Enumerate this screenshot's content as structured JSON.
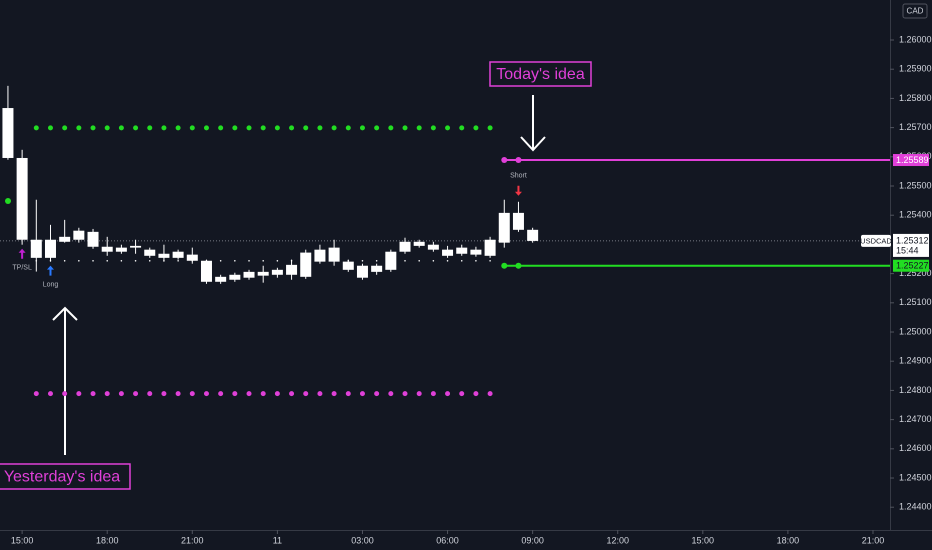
{
  "chart_data": {
    "type": "candlestick",
    "symbol": "USDCAD",
    "currency": "CAD",
    "up_color": "#ffffff",
    "down_color": "#ffffff",
    "candles": {
      "open": [
        1.25767,
        1.25596,
        1.25316,
        1.25254,
        1.25309,
        1.25316,
        1.25343,
        1.25292,
        1.25275,
        1.25289,
        1.25282,
        1.25268,
        1.25254,
        1.25265,
        1.25244,
        1.25172,
        1.25179,
        1.25186,
        1.25193,
        1.25196,
        1.25196,
        1.25189,
        1.25241,
        1.25289,
        1.25241,
        1.25227,
        1.25206,
        1.25213,
        1.25275,
        1.25295,
        1.25299,
        1.25282,
        1.25268,
        1.25282,
        1.25261,
        1.25306,
        1.25408,
        1.2535
      ],
      "high": [
        1.25843,
        1.25624,
        1.25453,
        1.25367,
        1.25384,
        1.25357,
        1.25353,
        1.25326,
        1.25299,
        1.25316,
        1.25289,
        1.25299,
        1.25282,
        1.25289,
        1.25248,
        1.25196,
        1.25203,
        1.25213,
        1.25227,
        1.2522,
        1.25248,
        1.25282,
        1.25299,
        1.25316,
        1.25248,
        1.25234,
        1.25234,
        1.25282,
        1.25323,
        1.25316,
        1.25309,
        1.25295,
        1.25299,
        1.25292,
        1.25326,
        1.25453,
        1.25446,
        1.25357
      ],
      "low": [
        1.2559,
        1.25299,
        1.25207,
        1.25241,
        1.25306,
        1.25306,
        1.25285,
        1.25261,
        1.25268,
        1.25268,
        1.25254,
        1.25241,
        1.25248,
        1.25234,
        1.25165,
        1.25165,
        1.25172,
        1.25179,
        1.25169,
        1.25186,
        1.25179,
        1.25182,
        1.25234,
        1.25227,
        1.25206,
        1.25179,
        1.25196,
        1.25206,
        1.25268,
        1.25289,
        1.25275,
        1.25254,
        1.25261,
        1.25258,
        1.25254,
        1.25289,
        1.25343,
        1.25306
      ],
      "close": [
        1.25596,
        1.25316,
        1.25254,
        1.25316,
        1.25326,
        1.25347,
        1.25292,
        1.25275,
        1.25289,
        1.25295,
        1.25261,
        1.25254,
        1.25275,
        1.25244,
        1.25172,
        1.25189,
        1.25196,
        1.25206,
        1.25206,
        1.25213,
        1.2523,
        1.25272,
        1.25282,
        1.25241,
        1.25213,
        1.25186,
        1.25227,
        1.25275,
        1.25309,
        1.25309,
        1.25282,
        1.25261,
        1.25289,
        1.25265,
        1.25316,
        1.25408,
        1.2535,
        1.25312
      ]
    },
    "xlim": [
      -0.56,
      62.2
    ],
    "xticks": [
      {
        "value": 1,
        "label": "15:00"
      },
      {
        "value": 7,
        "label": "18:00"
      },
      {
        "value": 13,
        "label": "21:00"
      },
      {
        "value": 19,
        "label": "11"
      },
      {
        "value": 25,
        "label": "03:00"
      },
      {
        "value": 31,
        "label": "06:00"
      },
      {
        "value": 37,
        "label": "09:00"
      },
      {
        "value": 43,
        "label": "12:00"
      },
      {
        "value": 49,
        "label": "15:00"
      },
      {
        "value": 55,
        "label": "18:00"
      },
      {
        "value": 61,
        "label": "21:00"
      }
    ],
    "ylim": [
      1.24322,
      1.26137
    ],
    "yticks": [
      {
        "value": 1.26,
        "label": "1.26000"
      },
      {
        "value": 1.259,
        "label": "1.25900"
      },
      {
        "value": 1.258,
        "label": "1.25800"
      },
      {
        "value": 1.257,
        "label": "1.25700"
      },
      {
        "value": 1.256,
        "label": "1.25600"
      },
      {
        "value": 1.255,
        "label": "1.25500"
      },
      {
        "value": 1.254,
        "label": "1.25400"
      },
      {
        "value": 1.252,
        "label": "1.25200"
      },
      {
        "value": 1.251,
        "label": "1.25100"
      },
      {
        "value": 1.25,
        "label": "1.25000"
      },
      {
        "value": 1.249,
        "label": "1.24900"
      },
      {
        "value": 1.248,
        "label": "1.24800"
      },
      {
        "value": 1.247,
        "label": "1.24700"
      },
      {
        "value": 1.246,
        "label": "1.24600"
      },
      {
        "value": 1.245,
        "label": "1.24500"
      },
      {
        "value": 1.244,
        "label": "1.24400"
      }
    ],
    "last_price": {
      "value": 1.25312,
      "label": "1.25312",
      "countdown": "15:44"
    },
    "dotted_levels": [
      {
        "value": 1.25699,
        "color": "#22dd22",
        "from": 2,
        "to": 34
      },
      {
        "value": 1.25244,
        "color": "#ffffff",
        "from": 2,
        "to": 34
      },
      {
        "value": 1.24789,
        "color": "#e040d8",
        "from": 2,
        "to": 34
      }
    ],
    "solid_levels": [
      {
        "value": 1.25589,
        "label": "1.25589",
        "color": "#e040d8",
        "from": 35
      },
      {
        "value": 1.25227,
        "label": "1.25227",
        "color": "#22dd22",
        "from": 35
      }
    ],
    "signals": [
      {
        "label": "TP/SL",
        "index": 1,
        "color": "#c020d0",
        "dir": "up"
      },
      {
        "label": "Long",
        "index": 3,
        "color": "#2979ff",
        "dir": "up"
      },
      {
        "label": "Short",
        "index": 36,
        "color": "#f23645",
        "dir": "down"
      }
    ],
    "annotations": [
      {
        "text": "Today's idea",
        "color": "#e040d8"
      },
      {
        "text": "Yesterday's idea",
        "color": "#e040d8"
      }
    ]
  }
}
